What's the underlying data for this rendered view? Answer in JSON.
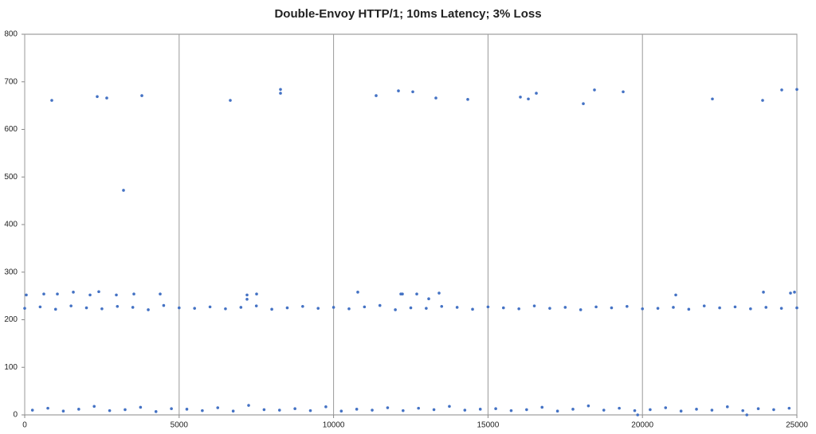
{
  "chart_data": {
    "type": "scatter",
    "title": "Double-Envoy HTTP/1; 10ms Latency; 3% Loss",
    "xlim": [
      0,
      25000
    ],
    "xticks": [
      0,
      5000,
      10000,
      15000,
      20000,
      25000
    ],
    "ylim": [
      0,
      800
    ],
    "yticks": [
      0,
      100,
      200,
      300,
      400,
      500,
      600,
      700,
      800
    ],
    "grid": "x",
    "series": [
      {
        "color": "#4472c4",
        "x": [
          877,
          2348,
          2657,
          3793,
          3199,
          6656,
          8282,
          8282,
          11378,
          12100,
          12565,
          13313,
          14345,
          16048,
          16306,
          16564,
          18086,
          18447,
          19376,
          22265,
          23891,
          24510,
          25000,
          52,
          619,
          1058,
          1574,
          2116,
          2399,
          2967,
          3535,
          4386,
          7198,
          7198,
          7508,
          10784,
          12178,
          12229,
          12694,
          13081,
          13416,
          21079,
          23917,
          24794,
          24923,
          0,
          500,
          1000,
          1500,
          2000,
          2500,
          3000,
          3500,
          4000,
          4500,
          5000,
          5500,
          6000,
          6500,
          7000,
          7500,
          8000,
          8500,
          9000,
          9500,
          10000,
          10500,
          11000,
          11500,
          12000,
          12500,
          13000,
          13500,
          14000,
          14500,
          15000,
          15500,
          16000,
          16500,
          17000,
          17500,
          18000,
          18500,
          19000,
          19500,
          20000,
          20500,
          21000,
          21500,
          22000,
          22500,
          23000,
          23500,
          24000,
          24500,
          25000,
          250,
          750,
          1250,
          1750,
          2250,
          2750,
          3250,
          3750,
          4250,
          4750,
          5250,
          5750,
          6250,
          6750,
          7250,
          7750,
          8250,
          8750,
          9250,
          9750,
          10250,
          10750,
          11250,
          11750,
          12250,
          12750,
          13250,
          13750,
          14250,
          14750,
          15250,
          15750,
          16250,
          16750,
          17250,
          17750,
          18250,
          18750,
          19250,
          19750,
          20250,
          20750,
          21250,
          21750,
          22250,
          22750,
          23250,
          23750,
          24250,
          24750,
          19845,
          23380
        ],
        "values": [
          661,
          669,
          666,
          671,
          472,
          661,
          684,
          676,
          671,
          681,
          679,
          666,
          663,
          668,
          664,
          676,
          654,
          683,
          679,
          664,
          661,
          683,
          684,
          252,
          254,
          254,
          258,
          252,
          259,
          252,
          254,
          254,
          243,
          252,
          254,
          258,
          254,
          254,
          254,
          244,
          256,
          252,
          258,
          256,
          258,
          224,
          227,
          222,
          229,
          225,
          223,
          228,
          226,
          221,
          230,
          225,
          224,
          227,
          223,
          226,
          229,
          222,
          225,
          228,
          224,
          226,
          223,
          227,
          230,
          221,
          225,
          224,
          228,
          226,
          222,
          227,
          225,
          223,
          229,
          224,
          226,
          221,
          227,
          225,
          228,
          223,
          224,
          226,
          222,
          229,
          225,
          227,
          223,
          226,
          224,
          225,
          10,
          14,
          8,
          12,
          18,
          9,
          11,
          16,
          7,
          13,
          12,
          9,
          15,
          8,
          20,
          11,
          10,
          13,
          9,
          17,
          8,
          12,
          10,
          15,
          9,
          14,
          11,
          18,
          10,
          12,
          13,
          9,
          11,
          16,
          8,
          12,
          19,
          10,
          14,
          9,
          11,
          15,
          8,
          12,
          10,
          17,
          9,
          13,
          11,
          14,
          0,
          0
        ]
      }
    ]
  }
}
